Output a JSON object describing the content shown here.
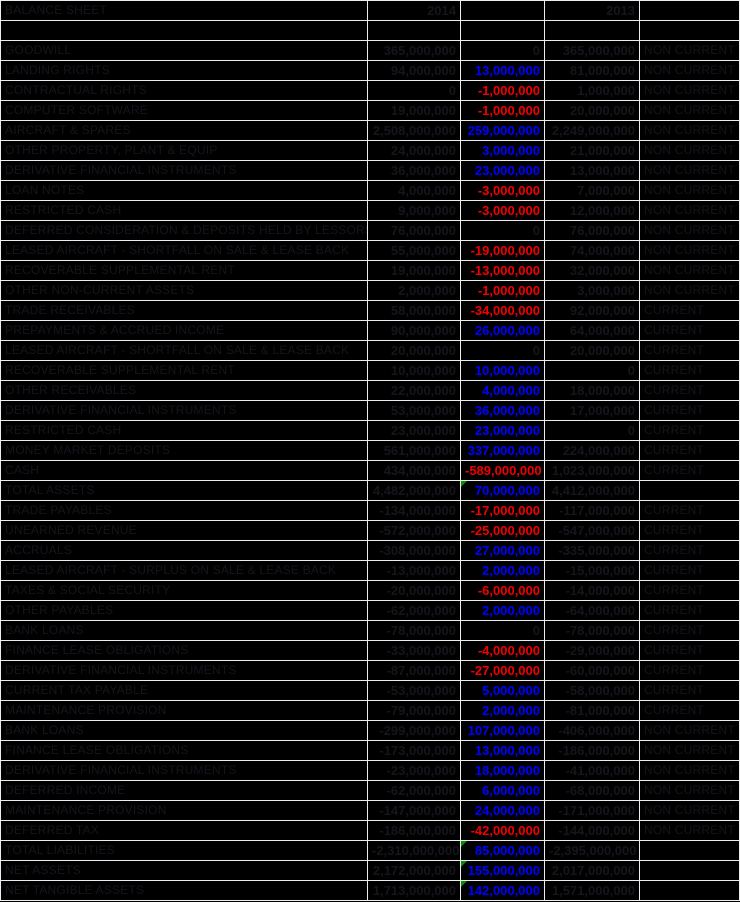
{
  "sheet": {
    "title": "BALANCE SHEET",
    "header": {
      "label": "BALANCE SHEET",
      "col_2014": "2014",
      "col_change": "",
      "col_2013": "2013",
      "col_class": ""
    },
    "colors": {
      "background": "#000000",
      "gridline": "#ededed",
      "dark_text": "#15151c",
      "positive_change": "#0000ff",
      "negative_change": "#f00000",
      "formula_flag_green": "#0a8a0a"
    },
    "classifications": [
      "NON CURRENT",
      "CURRENT"
    ],
    "rows": [
      {
        "label": "",
        "v2014": "",
        "change": "",
        "v2013": "",
        "cls": "",
        "flag": false
      },
      {
        "label": "GOODWILL",
        "v2014": "365,000,000",
        "change": "0",
        "v2013": "365,000,000",
        "cls": "NON CURRENT",
        "flag": false
      },
      {
        "label": "LANDING RIGHTS",
        "v2014": "94,000,000",
        "change": "13,000,000",
        "v2013": "81,000,000",
        "cls": "NON CURRENT",
        "flag": false
      },
      {
        "label": "CONTRACTUAL RIGHTS",
        "v2014": "0",
        "change": "-1,000,000",
        "v2013": "1,000,000",
        "cls": "NON CURRENT",
        "flag": false
      },
      {
        "label": "COMPUTER SOFTWARE",
        "v2014": "19,000,000",
        "change": "-1,000,000",
        "v2013": "20,000,000",
        "cls": "NON CURRENT",
        "flag": false
      },
      {
        "label": "AIRCRAFT & SPARES",
        "v2014": "2,508,000,000",
        "change": "259,000,000",
        "v2013": "2,249,000,000",
        "cls": "NON CURRENT",
        "flag": false
      },
      {
        "label": "OTHER PROPERTY, PLANT & EQUIP",
        "v2014": "24,000,000",
        "change": "3,000,000",
        "v2013": "21,000,000",
        "cls": "NON CURRENT",
        "flag": false
      },
      {
        "label": "DERIVATIVE FINANCIAL INSTRUMENTS",
        "v2014": "36,000,000",
        "change": "23,000,000",
        "v2013": "13,000,000",
        "cls": "NON CURRENT",
        "flag": false
      },
      {
        "label": "LOAN NOTES",
        "v2014": "4,000,000",
        "change": "-3,000,000",
        "v2013": "7,000,000",
        "cls": "NON CURRENT",
        "flag": false
      },
      {
        "label": "RESTRICTED CASH",
        "v2014": "9,000,000",
        "change": "-3,000,000",
        "v2013": "12,000,000",
        "cls": "NON CURRENT",
        "flag": false
      },
      {
        "label": "DEFERRED CONSIDERATION & DEPOSITS HELD BY LESSORS",
        "v2014": "76,000,000",
        "change": "0",
        "v2013": "76,000,000",
        "cls": "NON CURRENT",
        "flag": false
      },
      {
        "label": "LEASED AIRCRAFT - SHORTFALL ON SALE & LEASE BACK",
        "v2014": "55,000,000",
        "change": "-19,000,000",
        "v2013": "74,000,000",
        "cls": "NON CURRENT",
        "flag": false
      },
      {
        "label": "RECOVERABLE SUPPLEMENTAL RENT",
        "v2014": "19,000,000",
        "change": "-13,000,000",
        "v2013": "32,000,000",
        "cls": "NON CURRENT",
        "flag": false
      },
      {
        "label": "OTHER NON-CURRENT ASSETS",
        "v2014": "2,000,000",
        "change": "-1,000,000",
        "v2013": "3,000,000",
        "cls": "NON CURRENT",
        "flag": false
      },
      {
        "label": "TRADE RECEIVABLES",
        "v2014": "58,000,000",
        "change": "-34,000,000",
        "v2013": "92,000,000",
        "cls": "CURRENT",
        "flag": false
      },
      {
        "label": "PREPAYMENTS & ACCRUED INCOME",
        "v2014": "90,000,000",
        "change": "26,000,000",
        "v2013": "64,000,000",
        "cls": "CURRENT",
        "flag": false
      },
      {
        "label": "LEASED AIRCRAFT - SHORTFALL ON SALE & LEASE BACK",
        "v2014": "20,000,000",
        "change": "0",
        "v2013": "20,000,000",
        "cls": "CURRENT",
        "flag": false
      },
      {
        "label": "RECOVERABLE SUPPLEMENTAL RENT",
        "v2014": "10,000,000",
        "change": "10,000,000",
        "v2013": "0",
        "cls": "CURRENT",
        "flag": false
      },
      {
        "label": "OTHER RECEIVABLES",
        "v2014": "22,000,000",
        "change": "4,000,000",
        "v2013": "18,000,000",
        "cls": "CURRENT",
        "flag": false
      },
      {
        "label": "DERIVATIVE FINANCIAL INSTRUMENTS",
        "v2014": "53,000,000",
        "change": "36,000,000",
        "v2013": "17,000,000",
        "cls": "CURRENT",
        "flag": false
      },
      {
        "label": "RESTRICTED CASH",
        "v2014": "23,000,000",
        "change": "23,000,000",
        "v2013": "0",
        "cls": "CURRENT",
        "flag": false
      },
      {
        "label": "MONEY MARKET DEPOSITS",
        "v2014": "561,000,000",
        "change": "337,000,000",
        "v2013": "224,000,000",
        "cls": "CURRENT",
        "flag": false
      },
      {
        "label": "CASH",
        "v2014": "434,000,000",
        "change": "-589,000,000",
        "v2013": "1,023,000,000",
        "cls": "CURRENT",
        "flag": false
      },
      {
        "label": "TOTAL ASSETS",
        "v2014": "4,482,000,000",
        "change": "70,000,000",
        "v2013": "4,412,000,000",
        "cls": "",
        "flag": true
      },
      {
        "label": "TRADE PAYABLES",
        "v2014": "-134,000,000",
        "change": "-17,000,000",
        "v2013": "-117,000,000",
        "cls": "CURRENT",
        "flag": false
      },
      {
        "label": "UNEARNED REVENUE",
        "v2014": "-572,000,000",
        "change": "-25,000,000",
        "v2013": "-547,000,000",
        "cls": "CURRENT",
        "flag": false
      },
      {
        "label": "ACCRUALS",
        "v2014": "-308,000,000",
        "change": "27,000,000",
        "v2013": "-335,000,000",
        "cls": "CURRENT",
        "flag": false
      },
      {
        "label": "LEASED AIRCRAFT - SURPLUS ON SALE & LEASE BACK",
        "v2014": "-13,000,000",
        "change": "2,000,000",
        "v2013": "-15,000,000",
        "cls": "CURRENT",
        "flag": false
      },
      {
        "label": "TAXES & SOCIAL SECURITY",
        "v2014": "-20,000,000",
        "change": "-6,000,000",
        "v2013": "-14,000,000",
        "cls": "CURRENT",
        "flag": false
      },
      {
        "label": "OTHER PAYABLES",
        "v2014": "-62,000,000",
        "change": "2,000,000",
        "v2013": "-64,000,000",
        "cls": "CURRENT",
        "flag": false
      },
      {
        "label": "BANK LOANS",
        "v2014": "-78,000,000",
        "change": "0",
        "v2013": "-78,000,000",
        "cls": "CURRENT",
        "flag": false
      },
      {
        "label": "FINANCE LEASE OBLIGATIONS",
        "v2014": "-33,000,000",
        "change": "-4,000,000",
        "v2013": "-29,000,000",
        "cls": "CURRENT",
        "flag": false
      },
      {
        "label": "DERIVATIVE FINANCIAL INSTRUMENTS",
        "v2014": "-87,000,000",
        "change": "-27,000,000",
        "v2013": "-60,000,000",
        "cls": "CURRENT",
        "flag": false
      },
      {
        "label": "CURRENT TAX PAYABLE",
        "v2014": "-53,000,000",
        "change": "5,000,000",
        "v2013": "-58,000,000",
        "cls": "CURRENT",
        "flag": false
      },
      {
        "label": "MAINTENANCE PROVISION",
        "v2014": "-79,000,000",
        "change": "2,000,000",
        "v2013": "-81,000,000",
        "cls": "CURRENT",
        "flag": false
      },
      {
        "label": "BANK LOANS",
        "v2014": "-299,000,000",
        "change": "107,000,000",
        "v2013": "-406,000,000",
        "cls": "NON CURRENT",
        "flag": false
      },
      {
        "label": "FINANCE LEASE OBLIGATIONS",
        "v2014": "-173,000,000",
        "change": "13,000,000",
        "v2013": "-186,000,000",
        "cls": "NON CURRENT",
        "flag": false
      },
      {
        "label": "DERIVATIVE FINANCIAL INSTRUMENTS",
        "v2014": "-23,000,000",
        "change": "18,000,000",
        "v2013": "-41,000,000",
        "cls": "NON CURRENT",
        "flag": false
      },
      {
        "label": "DEFERRED INCOME",
        "v2014": "-62,000,000",
        "change": "6,000,000",
        "v2013": "-68,000,000",
        "cls": "NON CURRENT",
        "flag": false
      },
      {
        "label": "MAINTENANCE PROVISION",
        "v2014": "-147,000,000",
        "change": "24,000,000",
        "v2013": "-171,000,000",
        "cls": "NON CURRENT",
        "flag": false
      },
      {
        "label": "DEFERRED TAX",
        "v2014": "-186,000,000",
        "change": "-42,000,000",
        "v2013": "-144,000,000",
        "cls": "NON CURRENT",
        "flag": false
      },
      {
        "label": "TOTAL LIABILITIES",
        "v2014": "-2,310,000,000",
        "change": "85,000,000",
        "v2013": "-2,395,000,000",
        "cls": "",
        "flag": true
      },
      {
        "label": "NET ASSETS",
        "v2014": "2,172,000,000",
        "change": "155,000,000",
        "v2013": "2,017,000,000",
        "cls": "",
        "flag": true
      },
      {
        "label": "NET TANGIBLE ASSETS",
        "v2014": "1,713,000,000",
        "change": "142,000,000",
        "v2013": "1,571,000,000",
        "cls": "",
        "flag": true
      }
    ]
  }
}
